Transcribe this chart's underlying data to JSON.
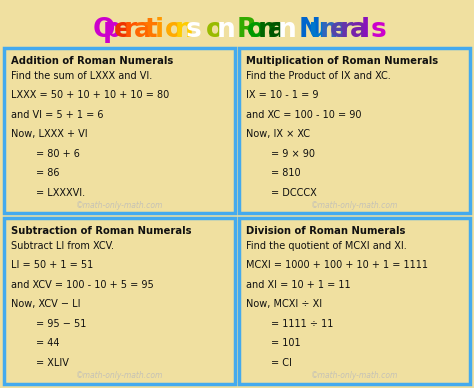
{
  "bg_color": "#f0e0a0",
  "box_bg": "#f0e0a0",
  "box_border": "#44aaee",
  "title_str": "Operations on Roman Numerals",
  "title_char_colors": [
    "#cc00cc",
    "#cc00cc",
    "#ee3300",
    "#ff5500",
    "#ff6600",
    "#ff7700",
    "#ff9900",
    "#ffaa00",
    "#ffcc00",
    "#ffffff",
    "#cccc00",
    "#99bb00",
    "#ffffff",
    "#66aa00",
    "#33aa00",
    "#009900",
    "#006600",
    "#005500",
    "#ffffff",
    "#0055aa",
    "#0066cc",
    "#0077cc",
    "#3366bb",
    "#5544aa",
    "#6633aa",
    "#7722aa",
    "#8811bb"
  ],
  "box1_title": "Addition of Roman Numerals",
  "box1_lines": [
    "Find the sum of LXXX and VI.",
    "LXXX = 50 + 10 + 10 + 10 = 80",
    "and VI = 5 + 1 = 6",
    "Now, LXXX + VI",
    "        = 80 + 6",
    "        = 86",
    "        = LXXXVI."
  ],
  "box2_title": "Multiplication of Roman Numerals",
  "box2_lines": [
    "Find the Product of IX and XC.",
    "IX = 10 - 1 = 9",
    "and XC = 100 - 10 = 90",
    "Now, IX × XC",
    "        = 9 × 90",
    "        = 810",
    "        = DCCCX"
  ],
  "box3_title": "Subtraction of Roman Numerals",
  "box3_lines": [
    "Subtract LI from XCV.",
    "LI = 50 + 1 = 51",
    "and XCV = 100 - 10 + 5 = 95",
    "Now, XCV − LI",
    "        = 95 − 51",
    "        = 44",
    "        = XLIV"
  ],
  "box4_title": "Division of Roman Numerals",
  "box4_lines": [
    "Find the quotient of MCXI and XI.",
    "MCXI = 1000 + 100 + 10 + 1 = 1111",
    "and XI = 10 + 1 = 11",
    "Now, MCXI ÷ XI",
    "        = 1111 ÷ 11",
    "        = 101",
    "        = CI"
  ],
  "watermark": "©math-only-math.com"
}
